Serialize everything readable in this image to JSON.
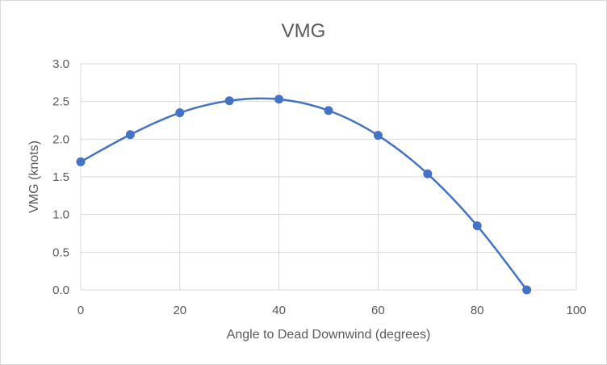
{
  "chart_data": {
    "type": "scatter",
    "title": "VMG",
    "xlabel": "Angle to Dead Downwind (degrees)",
    "ylabel": "VMG (knots)",
    "xlim": [
      0,
      100
    ],
    "ylim": [
      0,
      3
    ],
    "x_ticks": [
      0,
      20,
      40,
      60,
      80,
      100
    ],
    "y_ticks": [
      0.0,
      0.5,
      1.0,
      1.5,
      2.0,
      2.5,
      3.0
    ],
    "y_tick_format": 1,
    "grid": true,
    "legend": "none",
    "smooth": true,
    "color": "#4472c4",
    "series": [
      {
        "x": [
          0,
          10,
          20,
          30,
          40,
          50,
          60,
          70,
          80,
          90
        ],
        "y": [
          1.7,
          2.06,
          2.35,
          2.51,
          2.53,
          2.38,
          2.05,
          1.54,
          0.85,
          0.0
        ]
      }
    ]
  }
}
